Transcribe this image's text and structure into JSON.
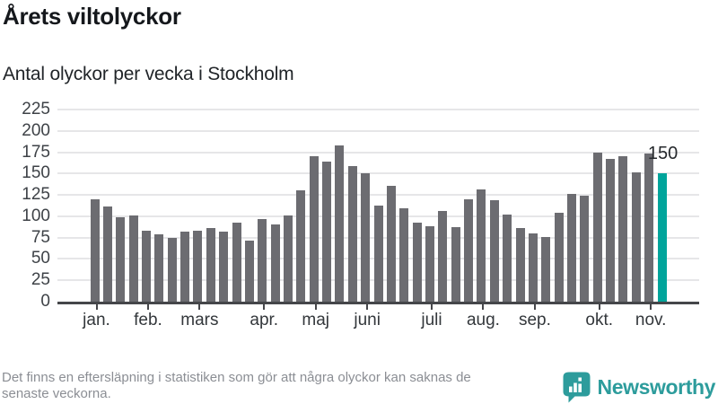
{
  "header": {
    "title": "Årets viltolyckor",
    "subtitle": "Antal olyckor per vecka i Stockholm"
  },
  "footer": {
    "note_line1": "Det finns en eftersläpning i statistiken som gör att några olyckor kan saknas de",
    "note_line2": "senaste veckorna.",
    "brand_name": "Newsworthy"
  },
  "colors": {
    "bar": "#6c6c71",
    "bar_highlight": "#00a49b",
    "gridline": "#e6e6e8",
    "axis": "#45464a",
    "brand_teal": "#2d9c9c"
  },
  "chart_data": {
    "type": "bar",
    "title": "Årets viltolyckor",
    "subtitle": "Antal olyckor per vecka i Stockholm",
    "unit": "olyckor per vecka",
    "x_description": "weeks of the year, January through November",
    "values": [
      120,
      111,
      99,
      101,
      83,
      79,
      75,
      82,
      83,
      86,
      82,
      93,
      72,
      97,
      90,
      101,
      130,
      170,
      164,
      183,
      159,
      150,
      112,
      136,
      109,
      93,
      88,
      106,
      87,
      120,
      131,
      119,
      102,
      86,
      80,
      76,
      104,
      126,
      124,
      175,
      167,
      170,
      151,
      174,
      150
    ],
    "highlight_index": 44,
    "highlight_label": "150",
    "y_ticks": [
      0,
      25,
      50,
      75,
      100,
      125,
      150,
      175,
      200,
      225
    ],
    "ylim": [
      0,
      225
    ],
    "grid": true,
    "months": [
      {
        "label": "jan.",
        "bar_index": 0
      },
      {
        "label": "feb.",
        "bar_index": 4
      },
      {
        "label": "mars",
        "bar_index": 8
      },
      {
        "label": "apr.",
        "bar_index": 13
      },
      {
        "label": "maj",
        "bar_index": 17
      },
      {
        "label": "juni",
        "bar_index": 21
      },
      {
        "label": "juli",
        "bar_index": 26
      },
      {
        "label": "aug.",
        "bar_index": 30
      },
      {
        "label": "sep.",
        "bar_index": 34
      },
      {
        "label": "okt.",
        "bar_index": 39
      },
      {
        "label": "nov.",
        "bar_index": 43
      }
    ]
  }
}
